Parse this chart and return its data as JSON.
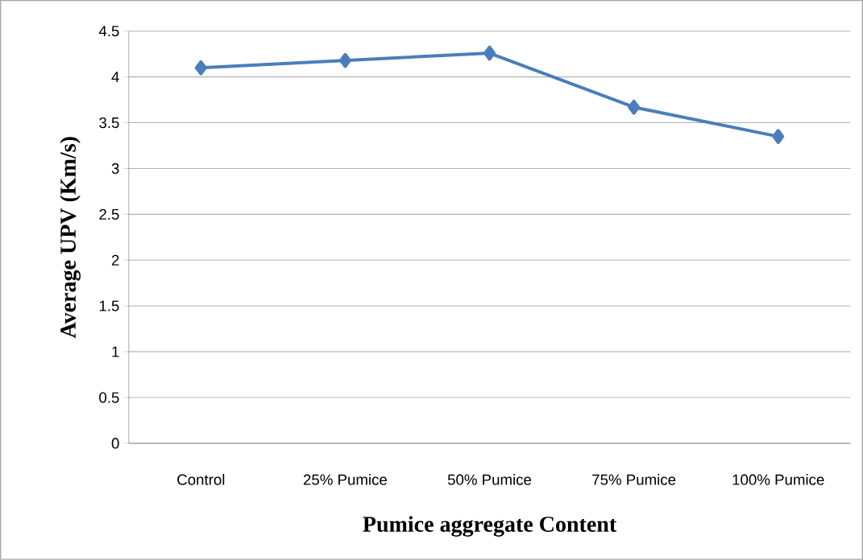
{
  "chart_data": {
    "type": "line",
    "xlabel": "Pumice aggregate Content",
    "ylabel": "Average UPV (Km/s)",
    "categories": [
      "Control",
      "25% Pumice",
      "50% Pumice",
      "75% Pumice",
      "100% Pumice"
    ],
    "values": [
      4.1,
      4.18,
      4.26,
      3.67,
      3.35
    ],
    "color": "#4a7ebb",
    "ylim": [
      0,
      4.5
    ],
    "yticks": [
      0,
      0.5,
      1,
      1.5,
      2,
      2.5,
      3,
      3.5,
      4,
      4.5
    ],
    "grid": "y",
    "marker": "diamond",
    "line_style": "solid"
  }
}
